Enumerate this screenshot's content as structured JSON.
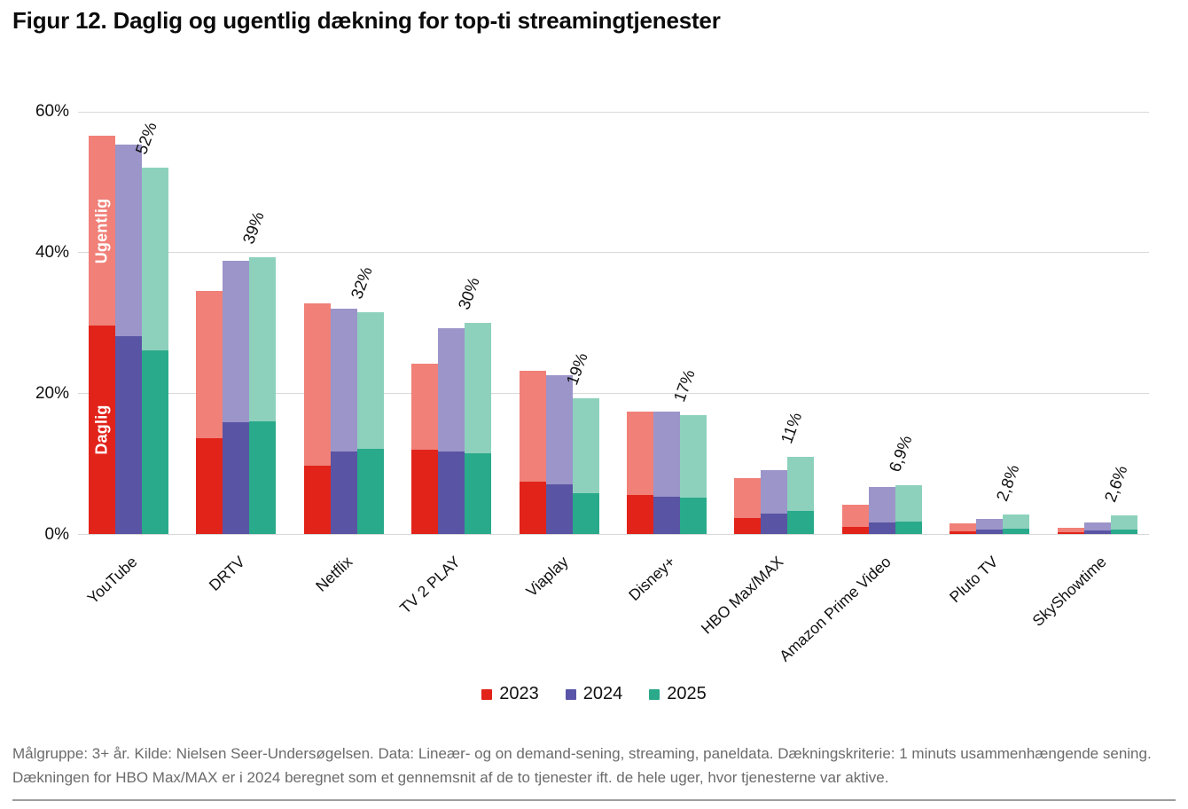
{
  "title": "Figur 12. Daglig og ugentlig dækning for top-ti streamingtjenester",
  "footnote": "Målgruppe: 3+ år. Kilde: Nielsen Seer-Undersøgelsen. Data: Lineær- og on demand-sening, streaming, paneldata. Dækningskriterie: 1 minuts usammenhængende sening. Dækningen for HBO Max/MAX er i 2024 beregnet som et gennemsnit af de to tjenester ift. de hele uger, hvor tjenesterne var aktive.",
  "legend": {
    "items": [
      {
        "label": "2023",
        "color": "#e2231a"
      },
      {
        "label": "2024",
        "color": "#5a55a8"
      },
      {
        "label": "2025",
        "color": "#2aa98b"
      }
    ]
  },
  "chart_data": {
    "type": "bar",
    "subtype": "grouped-stacked-daily-weekly",
    "title": "Figur 12. Daglig og ugentlig dækning for top-ti streamingtjenester",
    "xlabel": "",
    "ylabel": "",
    "unit": "%",
    "ylim": [
      0,
      60
    ],
    "grid": true,
    "legend_position": "bottom",
    "yticks": [
      {
        "value": 0,
        "label": "0%"
      },
      {
        "value": 20,
        "label": "20%"
      },
      {
        "value": 40,
        "label": "40%"
      },
      {
        "value": 60,
        "label": "60%"
      }
    ],
    "years": [
      "2023",
      "2024",
      "2025"
    ],
    "colors": {
      "2023": {
        "daily": "#e2231a",
        "weekly": "#f08078"
      },
      "2024": {
        "daily": "#5a54a4",
        "weekly": "#9b95c9"
      },
      "2025": {
        "daily": "#29aa8b",
        "weekly": "#8dd1bd"
      }
    },
    "bar_annotations": {
      "service": "YouTube",
      "year": "2023",
      "weekly_text": "Ugentlig",
      "daily_text": "Daglig"
    },
    "categories": [
      "YouTube",
      "DRTV",
      "Netflix",
      "TV 2 PLAY",
      "Viaplay",
      "Disney+",
      "HBO Max/MAX",
      "Amazon Prime Video",
      "Pluto TV",
      "SkyShowtime"
    ],
    "services": [
      {
        "name": "YouTube",
        "weekly": {
          "2023": 56.5,
          "2024": 55.2,
          "2025": 52.0
        },
        "daily": {
          "2023": 29.5,
          "2024": 28.0,
          "2025": 26.1
        },
        "label_2025": "52%"
      },
      {
        "name": "DRTV",
        "weekly": {
          "2023": 34.5,
          "2024": 38.8,
          "2025": 39.2
        },
        "daily": {
          "2023": 13.6,
          "2024": 15.8,
          "2025": 16.0
        },
        "label_2025": "39%"
      },
      {
        "name": "Netflix",
        "weekly": {
          "2023": 32.7,
          "2024": 31.9,
          "2025": 31.5
        },
        "daily": {
          "2023": 9.7,
          "2024": 11.7,
          "2025": 12.1
        },
        "label_2025": "32%"
      },
      {
        "name": "TV 2 PLAY",
        "weekly": {
          "2023": 24.1,
          "2024": 29.2,
          "2025": 29.9
        },
        "daily": {
          "2023": 11.9,
          "2024": 11.7,
          "2025": 11.4
        },
        "label_2025": "30%"
      },
      {
        "name": "Viaplay",
        "weekly": {
          "2023": 23.2,
          "2024": 22.5,
          "2025": 19.2
        },
        "daily": {
          "2023": 7.4,
          "2024": 7.1,
          "2025": 5.8
        },
        "label_2025": "19%"
      },
      {
        "name": "Disney+",
        "weekly": {
          "2023": 17.4,
          "2024": 17.3,
          "2025": 16.8
        },
        "daily": {
          "2023": 5.5,
          "2024": 5.3,
          "2025": 5.1
        },
        "label_2025": "17%"
      },
      {
        "name": "HBO Max/MAX",
        "weekly": {
          "2023": 7.9,
          "2024": 9.0,
          "2025": 10.9
        },
        "daily": {
          "2023": 2.3,
          "2024": 2.9,
          "2025": 3.3
        },
        "label_2025": "11%"
      },
      {
        "name": "Amazon Prime Video",
        "weekly": {
          "2023": 4.1,
          "2024": 6.7,
          "2025": 6.9
        },
        "daily": {
          "2023": 1.0,
          "2024": 1.6,
          "2025": 1.8
        },
        "label_2025": "6,9%"
      },
      {
        "name": "Pluto TV",
        "weekly": {
          "2023": 1.5,
          "2024": 2.2,
          "2025": 2.8
        },
        "daily": {
          "2023": 0.4,
          "2024": 0.6,
          "2025": 0.8
        },
        "label_2025": "2,8%"
      },
      {
        "name": "SkyShowtime",
        "weekly": {
          "2023": 0.9,
          "2024": 1.7,
          "2025": 2.6
        },
        "daily": {
          "2023": 0.25,
          "2024": 0.5,
          "2025": 0.6
        },
        "label_2025": "2,6%"
      }
    ]
  }
}
